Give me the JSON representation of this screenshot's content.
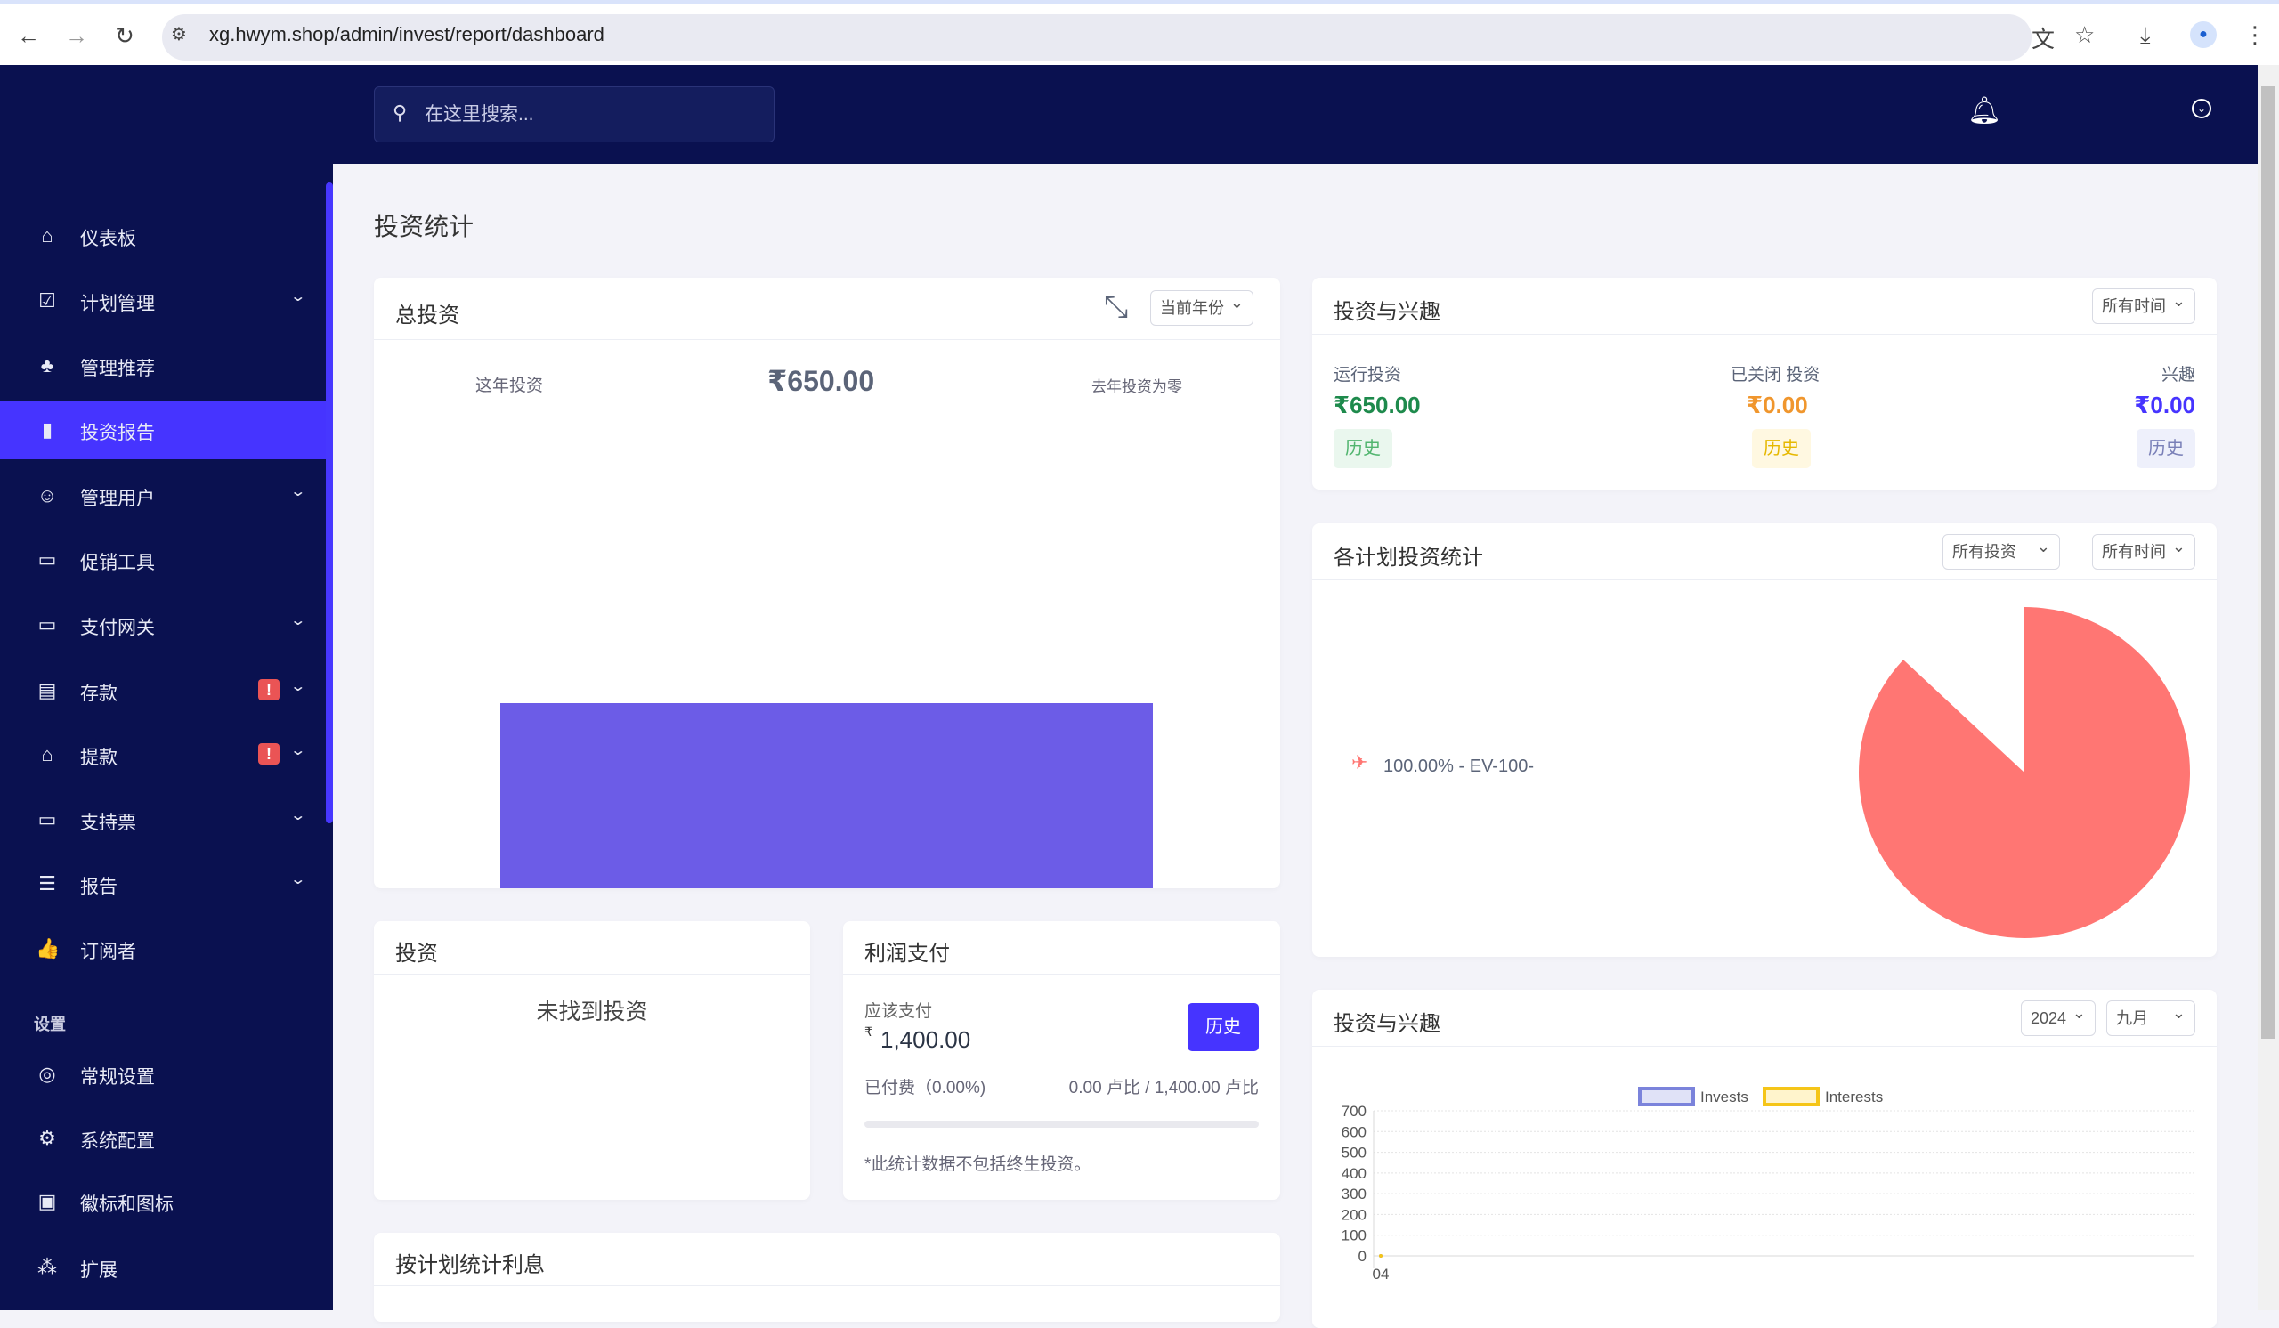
{
  "browser": {
    "url": "xg.hwym.shop/admin/invest/report/dashboard"
  },
  "header": {
    "search_placeholder": "在这里搜索..."
  },
  "sidebar": {
    "items": [
      {
        "label": "仪表板",
        "icon": "home-icon",
        "glyph": "⌂",
        "chevron": false
      },
      {
        "label": "计划管理",
        "icon": "clipboard-check-icon",
        "glyph": "☑",
        "chevron": true
      },
      {
        "label": "管理推荐",
        "icon": "tree-icon",
        "glyph": "♣",
        "chevron": false
      },
      {
        "label": "投资报告",
        "icon": "bar-chart-icon",
        "glyph": "▮",
        "chevron": false,
        "active": true
      },
      {
        "label": "管理用户",
        "icon": "users-icon",
        "glyph": "☺",
        "chevron": true
      },
      {
        "label": "促销工具",
        "icon": "ad-icon",
        "glyph": "▭",
        "chevron": false
      },
      {
        "label": "支付网关",
        "icon": "credit-card-icon",
        "glyph": "▭",
        "chevron": true
      },
      {
        "label": "存款",
        "icon": "invoice-dollar-icon",
        "glyph": "▤",
        "chevron": true,
        "badge": "!"
      },
      {
        "label": "提款",
        "icon": "bank-icon",
        "glyph": "⌂",
        "chevron": true,
        "badge": "!"
      },
      {
        "label": "支持票",
        "icon": "ticket-icon",
        "glyph": "▭",
        "chevron": true
      },
      {
        "label": "报告",
        "icon": "list-icon",
        "glyph": "☰",
        "chevron": true
      },
      {
        "label": "订阅者",
        "icon": "thumbs-up-icon",
        "glyph": "👍",
        "chevron": false
      }
    ],
    "settings_label": "设置",
    "settings_items": [
      {
        "label": "常规设置",
        "icon": "lifebuoy-icon",
        "glyph": "◎"
      },
      {
        "label": "系统配置",
        "icon": "gear-icon",
        "glyph": "⚙"
      },
      {
        "label": "徽标和图标",
        "icon": "image-icon",
        "glyph": "▣"
      },
      {
        "label": "扩展",
        "icon": "cubes-icon",
        "glyph": "⁂"
      }
    ]
  },
  "page": {
    "title": "投资统计"
  },
  "total_invest": {
    "title": "总投资",
    "period_select": "当前年份",
    "this_year_label": "这年投资",
    "amount": "₹650.00",
    "last_year_note": "去年投资为零",
    "bar_color": "#6c5ce7"
  },
  "invest_interest": {
    "title": "投资与兴趣",
    "period_select": "所有时间",
    "running": {
      "label": "运行投资",
      "amount": "₹650.00",
      "btn": "历史",
      "color": "#1e8a4c"
    },
    "closed": {
      "label": "已关闭 投资",
      "amount": "₹0.00",
      "btn": "历史",
      "color": "#f0962d"
    },
    "interest": {
      "label": "兴趣",
      "amount": "₹0.00",
      "btn": "历史",
      "color": "#4634ff"
    }
  },
  "plan_stats": {
    "title": "各计划投资统计",
    "invest_select": "所有投资",
    "period_select": "所有时间",
    "legend": "100.00% - EV-100-",
    "color": "#ff7673"
  },
  "investments": {
    "title": "投资",
    "empty": "未找到投资"
  },
  "profit": {
    "title": "利润支付",
    "due_label": "应该支付",
    "currency": "₹",
    "due_amount": "1,400.00",
    "btn": "历史",
    "paid_label": "已付费（0.00%)",
    "paid_ratio": "0.00 卢比 / 1,400.00 卢比",
    "progress": 0,
    "note": "*此统计数据不包括终生投资。"
  },
  "interest_by_plan": {
    "title": "按计划统计利息"
  },
  "monthly": {
    "title": "投资与兴趣",
    "year_select": "2024",
    "month_select": "九月"
  },
  "chart_data": [
    {
      "type": "bar",
      "categories": [
        ""
      ],
      "values": [
        650
      ]
    },
    {
      "type": "line",
      "x": [
        "04"
      ],
      "series": [
        {
          "name": "Invests",
          "values": [
            0
          ],
          "color": "#7b83db"
        },
        {
          "name": "Interests",
          "values": [
            0
          ],
          "color": "#f5c518"
        }
      ],
      "ylim": [
        0,
        700
      ],
      "yticks": [
        0,
        100,
        200,
        300,
        400,
        500,
        600,
        700
      ],
      "grid": true,
      "legend": "top"
    },
    {
      "type": "pie",
      "labels": [
        "EV-100-"
      ],
      "values": [
        100
      ]
    }
  ]
}
